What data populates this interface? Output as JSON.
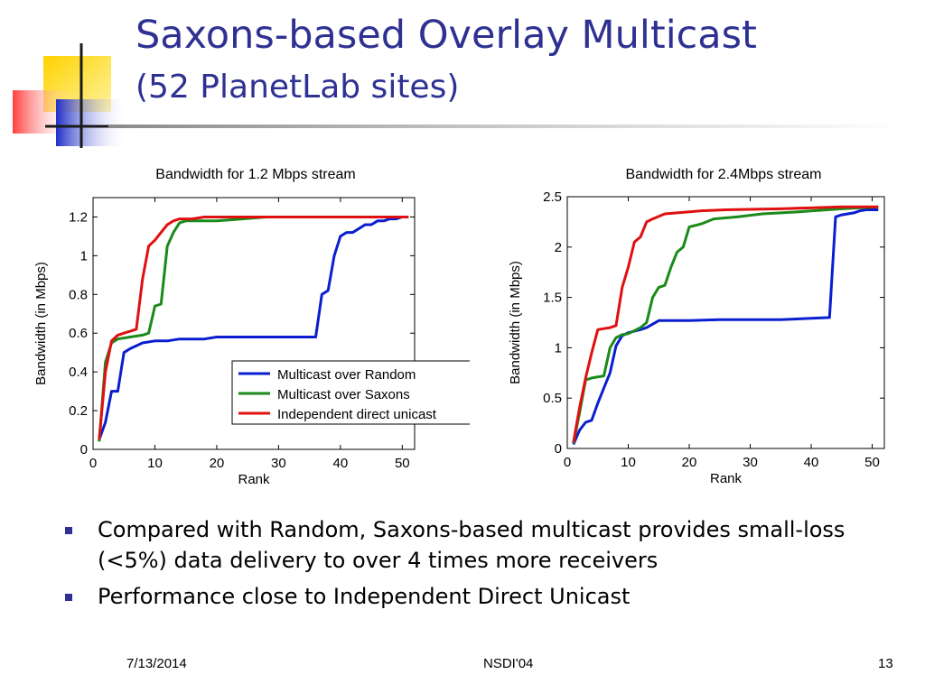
{
  "slide": {
    "title_line1": "Saxons-based Overlay Multicast",
    "title_line2": "(52 PlanetLab sites)",
    "bullets": [
      "Compared with Random, Saxons-based multicast provides small-loss (<5%) data delivery to over 4 times more receivers",
      "Performance close to Independent Direct Unicast"
    ],
    "footer": {
      "date": "7/13/2014",
      "conference": "NSDI'04",
      "page": "13"
    },
    "colors": {
      "title": "#2e3192",
      "bullet": "#2e3192"
    }
  },
  "chart_data": [
    {
      "type": "line",
      "title": "Bandwidth for 1.2 Mbps stream",
      "xlabel": "Rank",
      "ylabel": "Bandwidth (in Mbps)",
      "xlim": [
        0,
        52
      ],
      "ylim": [
        0,
        1.3
      ],
      "xticks": [
        0,
        10,
        20,
        30,
        40,
        50
      ],
      "yticks": [
        0,
        0.2,
        0.4,
        0.6,
        0.8,
        1,
        1.2
      ],
      "ytick_labels": [
        "0",
        "0.2",
        "0.4",
        "0.6",
        "0.8",
        "1",
        "1.2"
      ],
      "legend": "inside-lower-right",
      "series": [
        {
          "name": "Multicast over Random",
          "color": "#0a1ecf",
          "x": [
            1,
            2,
            3,
            4,
            5,
            6,
            8,
            10,
            12,
            14,
            18,
            20,
            30,
            36,
            37,
            38,
            39,
            40,
            41,
            42,
            43,
            44,
            45,
            46,
            47,
            48,
            49,
            50,
            51
          ],
          "y": [
            0.05,
            0.14,
            0.3,
            0.3,
            0.5,
            0.52,
            0.55,
            0.56,
            0.56,
            0.57,
            0.57,
            0.58,
            0.58,
            0.58,
            0.8,
            0.82,
            1.0,
            1.1,
            1.12,
            1.12,
            1.14,
            1.16,
            1.16,
            1.18,
            1.18,
            1.19,
            1.19,
            1.2,
            1.2
          ]
        },
        {
          "name": "Multicast over Saxons",
          "color": "#1a8a1a",
          "x": [
            1,
            2,
            3,
            4,
            6,
            8,
            9,
            10,
            11,
            12,
            13,
            14,
            15,
            17,
            20,
            28,
            35,
            45,
            51
          ],
          "y": [
            0.04,
            0.45,
            0.55,
            0.57,
            0.58,
            0.59,
            0.6,
            0.74,
            0.75,
            1.05,
            1.12,
            1.17,
            1.18,
            1.18,
            1.18,
            1.2,
            1.2,
            1.2,
            1.2
          ]
        },
        {
          "name": "Independent direct unicast",
          "color": "#e01010",
          "x": [
            1,
            2,
            3,
            4,
            5,
            6,
            7,
            8,
            9,
            10,
            11,
            12,
            13,
            14,
            16,
            18,
            25,
            51
          ],
          "y": [
            0.05,
            0.4,
            0.56,
            0.59,
            0.6,
            0.61,
            0.62,
            0.88,
            1.05,
            1.08,
            1.12,
            1.16,
            1.18,
            1.19,
            1.19,
            1.2,
            1.2,
            1.2
          ]
        }
      ]
    },
    {
      "type": "line",
      "title": "Bandwidth for 2.4Mbps stream",
      "xlabel": "Rank",
      "ylabel": "Bandwidth (in Mbps)",
      "xlim": [
        0,
        52
      ],
      "ylim": [
        0,
        2.5
      ],
      "xticks": [
        0,
        10,
        20,
        30,
        40,
        50
      ],
      "yticks": [
        0,
        0.5,
        1,
        1.5,
        2,
        2.5
      ],
      "ytick_labels": [
        "0",
        "0.5",
        "1",
        "1.5",
        "2",
        "2.5"
      ],
      "series": [
        {
          "name": "Multicast over Random",
          "color": "#0a1ecf",
          "x": [
            1,
            2,
            3,
            4,
            5,
            6,
            7,
            8,
            9,
            10,
            12,
            13,
            15,
            20,
            25,
            35,
            43,
            44,
            45,
            46,
            47,
            48,
            49,
            51
          ],
          "y": [
            0.04,
            0.18,
            0.26,
            0.28,
            0.45,
            0.6,
            0.75,
            1.02,
            1.12,
            1.15,
            1.18,
            1.2,
            1.27,
            1.27,
            1.28,
            1.28,
            1.3,
            2.3,
            2.32,
            2.33,
            2.34,
            2.36,
            2.37,
            2.37
          ]
        },
        {
          "name": "Multicast over Saxons",
          "color": "#1a8a1a",
          "x": [
            1,
            2,
            3,
            4,
            6,
            7,
            8,
            9,
            10,
            12,
            13,
            14,
            15,
            16,
            17,
            18,
            19,
            20,
            22,
            24,
            28,
            32,
            38,
            45,
            51
          ],
          "y": [
            0.05,
            0.35,
            0.68,
            0.7,
            0.72,
            1.0,
            1.1,
            1.13,
            1.14,
            1.2,
            1.25,
            1.5,
            1.6,
            1.62,
            1.8,
            1.95,
            2.0,
            2.2,
            2.23,
            2.28,
            2.3,
            2.33,
            2.35,
            2.38,
            2.4
          ]
        },
        {
          "name": "Independent direct unicast",
          "color": "#e01010",
          "x": [
            1,
            2,
            3,
            4,
            5,
            6,
            7,
            8,
            9,
            10,
            11,
            12,
            13,
            14,
            16,
            18,
            22,
            26,
            35,
            45,
            51
          ],
          "y": [
            0.06,
            0.4,
            0.7,
            0.95,
            1.18,
            1.19,
            1.2,
            1.22,
            1.6,
            1.8,
            2.05,
            2.1,
            2.25,
            2.28,
            2.33,
            2.34,
            2.36,
            2.37,
            2.38,
            2.4,
            2.4
          ]
        }
      ]
    }
  ]
}
